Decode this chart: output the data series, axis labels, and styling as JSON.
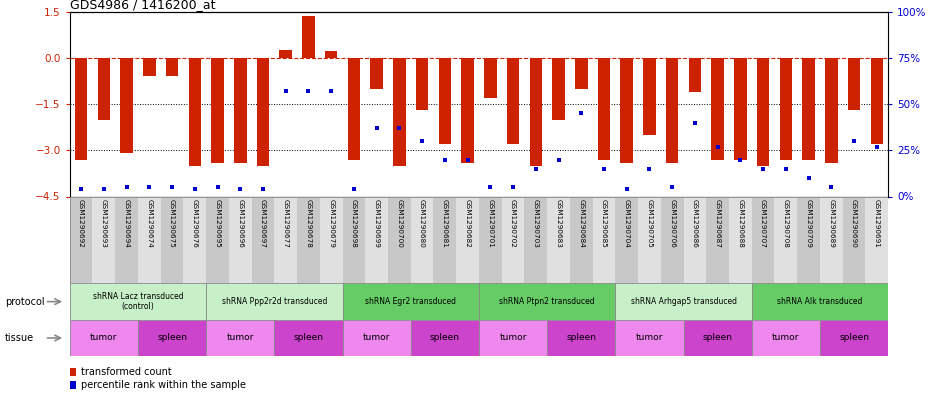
{
  "title": "GDS4986 / 1416200_at",
  "samples": [
    "GSM1290692",
    "GSM1290693",
    "GSM1290694",
    "GSM1290674",
    "GSM1290675",
    "GSM1290676",
    "GSM1290695",
    "GSM1290696",
    "GSM1290697",
    "GSM1290677",
    "GSM1290678",
    "GSM1290679",
    "GSM1290698",
    "GSM1290699",
    "GSM1290700",
    "GSM1290680",
    "GSM1290681",
    "GSM1290682",
    "GSM1290701",
    "GSM1290702",
    "GSM1290703",
    "GSM1290683",
    "GSM1290684",
    "GSM1290685",
    "GSM1290704",
    "GSM1290705",
    "GSM1290706",
    "GSM1290686",
    "GSM1290687",
    "GSM1290688",
    "GSM1290707",
    "GSM1290708",
    "GSM1290709",
    "GSM1290689",
    "GSM1290690",
    "GSM1290691"
  ],
  "bar_values": [
    -3.3,
    -2.0,
    -3.1,
    -0.6,
    -0.6,
    -3.5,
    -3.4,
    -3.4,
    -3.5,
    0.25,
    1.35,
    0.22,
    -3.3,
    -1.0,
    -3.5,
    -1.7,
    -2.8,
    -3.4,
    -1.3,
    -2.8,
    -3.5,
    -2.0,
    -1.0,
    -3.3,
    -3.4,
    -2.5,
    -3.4,
    -1.1,
    -3.3,
    -3.3,
    -3.5,
    -3.3,
    -3.3,
    -3.4,
    -1.7,
    -2.8
  ],
  "percentile_values": [
    4,
    4,
    5,
    5,
    5,
    4,
    5,
    4,
    4,
    57,
    57,
    57,
    4,
    37,
    37,
    30,
    20,
    20,
    5,
    5,
    15,
    20,
    45,
    15,
    4,
    15,
    5,
    40,
    27,
    20,
    15,
    15,
    10,
    5,
    30,
    27
  ],
  "protocols": [
    {
      "label": "shRNA Lacz transduced\n(control)",
      "start": 0,
      "end": 5,
      "color": "#c8f0c8"
    },
    {
      "label": "shRNA Ppp2r2d transduced",
      "start": 6,
      "end": 11,
      "color": "#c8f0c8"
    },
    {
      "label": "shRNA Egr2 transduced",
      "start": 12,
      "end": 17,
      "color": "#66cc66"
    },
    {
      "label": "shRNA Ptpn2 transduced",
      "start": 18,
      "end": 23,
      "color": "#66cc66"
    },
    {
      "label": "shRNA Arhgap5 transduced",
      "start": 24,
      "end": 29,
      "color": "#c8f0c8"
    },
    {
      "label": "shRNA Alk transduced",
      "start": 30,
      "end": 35,
      "color": "#66cc66"
    }
  ],
  "tissues": [
    {
      "label": "tumor",
      "start": 0,
      "end": 2,
      "color": "#ee88ee"
    },
    {
      "label": "spleen",
      "start": 3,
      "end": 5,
      "color": "#cc44cc"
    },
    {
      "label": "tumor",
      "start": 6,
      "end": 8,
      "color": "#ee88ee"
    },
    {
      "label": "spleen",
      "start": 9,
      "end": 11,
      "color": "#cc44cc"
    },
    {
      "label": "tumor",
      "start": 12,
      "end": 14,
      "color": "#ee88ee"
    },
    {
      "label": "spleen",
      "start": 15,
      "end": 17,
      "color": "#cc44cc"
    },
    {
      "label": "tumor",
      "start": 18,
      "end": 20,
      "color": "#ee88ee"
    },
    {
      "label": "spleen",
      "start": 21,
      "end": 23,
      "color": "#cc44cc"
    },
    {
      "label": "tumor",
      "start": 24,
      "end": 26,
      "color": "#ee88ee"
    },
    {
      "label": "spleen",
      "start": 27,
      "end": 29,
      "color": "#cc44cc"
    },
    {
      "label": "tumor",
      "start": 30,
      "end": 32,
      "color": "#ee88ee"
    },
    {
      "label": "spleen",
      "start": 33,
      "end": 35,
      "color": "#cc44cc"
    }
  ],
  "bar_color": "#cc2200",
  "percentile_color": "#0000cc",
  "ylim_left": [
    -4.5,
    1.5
  ],
  "ylim_right": [
    0,
    100
  ],
  "yticks_left": [
    1.5,
    0,
    -1.5,
    -3.0,
    -4.5
  ],
  "yticks_right": [
    100,
    75,
    50,
    25,
    0
  ],
  "hline_y": 0,
  "dotted_lines": [
    -1.5,
    -3.0
  ],
  "background_color": "#ffffff"
}
